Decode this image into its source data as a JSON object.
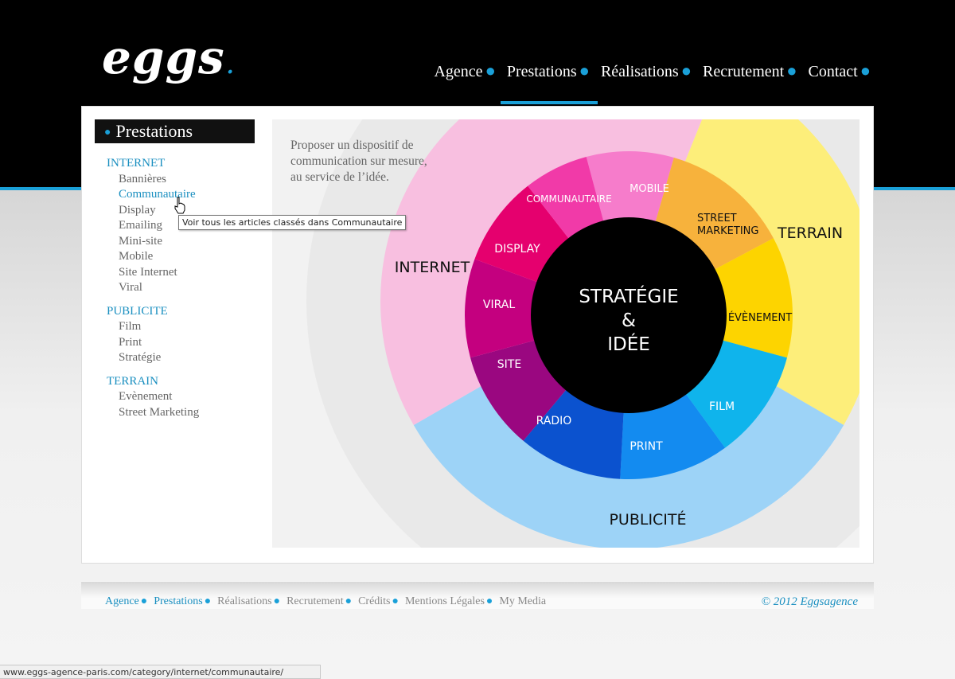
{
  "brand": {
    "logo_text": "eggs",
    "logo_dot": "."
  },
  "nav": {
    "items": [
      {
        "label": "Agence"
      },
      {
        "label": "Prestations",
        "active": true
      },
      {
        "label": "Réalisations"
      },
      {
        "label": "Recrutement"
      },
      {
        "label": "Contact"
      }
    ]
  },
  "sidebar": {
    "title": "Prestations",
    "categories": [
      {
        "label": "INTERNET",
        "items": [
          "Bannières",
          "Communautaire",
          "Display",
          "Emailing",
          "Mini-site",
          "Mobile",
          "Site Internet",
          "Viral"
        ]
      },
      {
        "label": "PUBLICITE",
        "items": [
          "Film",
          "Print",
          "Stratégie"
        ]
      },
      {
        "label": "TERRAIN",
        "items": [
          "Evènement",
          "Street Marketing"
        ]
      }
    ],
    "hovered_item": "Communautaire"
  },
  "tooltip": "Voir tous les articles classés dans Communautaire",
  "intro": "Proposer un dispositif de communication sur mesure, au service de l’idée.",
  "wheel": {
    "center": [
      "STRATÉGIE",
      "&",
      "IDÉE"
    ],
    "outer": {
      "internet": "INTERNET",
      "terrain": "TERRAIN",
      "publicite": "PUBLICITÉ"
    },
    "inner": {
      "communautaire": "COMMUNAUTAIRE",
      "mobile": "MOBILE",
      "street1": "STREET",
      "street2": "MARKETING",
      "evenement": "ÉVÈNEMENT",
      "film": "FILM",
      "print": "PRINT",
      "radio": "RADIO",
      "site": "SITE",
      "viral": "VIRAL",
      "display": "DISPLAY"
    },
    "colors": {
      "internet_outer": "#f8bfe0",
      "terrain_outer": "#fdee7a",
      "publicite_outer": "#9dd3f7",
      "communautaire": "#f13aa8",
      "mobile": "#f67ccb",
      "street": "#f7b23c",
      "evenement": "#fdd400",
      "film": "#0fb4ec",
      "print": "#138bf0",
      "radio": "#0b52cf",
      "site": "#9a0780",
      "viral": "#c4007f",
      "display": "#e5006e",
      "center": "#000000"
    }
  },
  "footer": {
    "links": [
      {
        "label": "Agence"
      },
      {
        "label": "Prestations"
      },
      {
        "label": "Réalisations"
      },
      {
        "label": "Recrutement"
      },
      {
        "label": "Crédits"
      },
      {
        "label": "Mentions Légales"
      },
      {
        "label": "My Media"
      }
    ],
    "copyright": "© 2012 Eggsagence"
  },
  "statusbar": {
    "url": "www.eggs-agence-paris.com/category/internet/communautaire/"
  }
}
